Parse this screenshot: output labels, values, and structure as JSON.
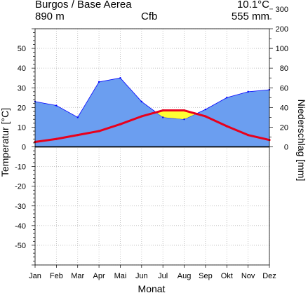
{
  "header": {
    "station": "Burgos / Base Aerea",
    "elevation": "890 m",
    "climate_class": "Cfb",
    "mean_temp": "10.1°C",
    "annual_precip": "555 mm"
  },
  "chart_data": {
    "type": "area",
    "xlabel": "Monat",
    "ylabel_left": "Temperatur [°C]",
    "ylabel_right": "Niederschlag [mm]",
    "categories": [
      "Jan",
      "Feb",
      "Mar",
      "Apr",
      "Mai",
      "Jun",
      "Jul",
      "Aug",
      "Sep",
      "Okt",
      "Nov",
      "Dez"
    ],
    "temp_ylim": [
      -60,
      60
    ],
    "temp_ticks": [
      "-50",
      "-40",
      "-30",
      "-20",
      "-10",
      "0",
      "10",
      "20",
      "30",
      "40",
      "50"
    ],
    "precip_ticks": [
      "0",
      "20",
      "40",
      "60",
      "80",
      "100",
      "200",
      "300",
      "400",
      "500",
      "600",
      "700",
      "800",
      "900"
    ],
    "precip_scale": "0–100 mm: 10 °C = 20 mm; above 100 mm: 10 °C = 100 mm",
    "grid": true,
    "series": [
      {
        "key": "temperature",
        "unit": "°C",
        "color": "#e8001c",
        "values": [
          2.5,
          4.0,
          6.0,
          8.0,
          11.5,
          15.5,
          18.5,
          18.5,
          15.5,
          10.5,
          6.0,
          3.5
        ]
      },
      {
        "key": "precipitation",
        "unit": "mm",
        "color": "#6b9ef0",
        "values": [
          46,
          42,
          30,
          66,
          70,
          46,
          30,
          28,
          38,
          50,
          56,
          58
        ]
      }
    ],
    "colors": {
      "humid": "#6b9ef0",
      "arid": "#ffff33",
      "temperature_line": "#e8001c",
      "precip_line": "#0000ff",
      "grid": "#bbbbbb"
    }
  }
}
